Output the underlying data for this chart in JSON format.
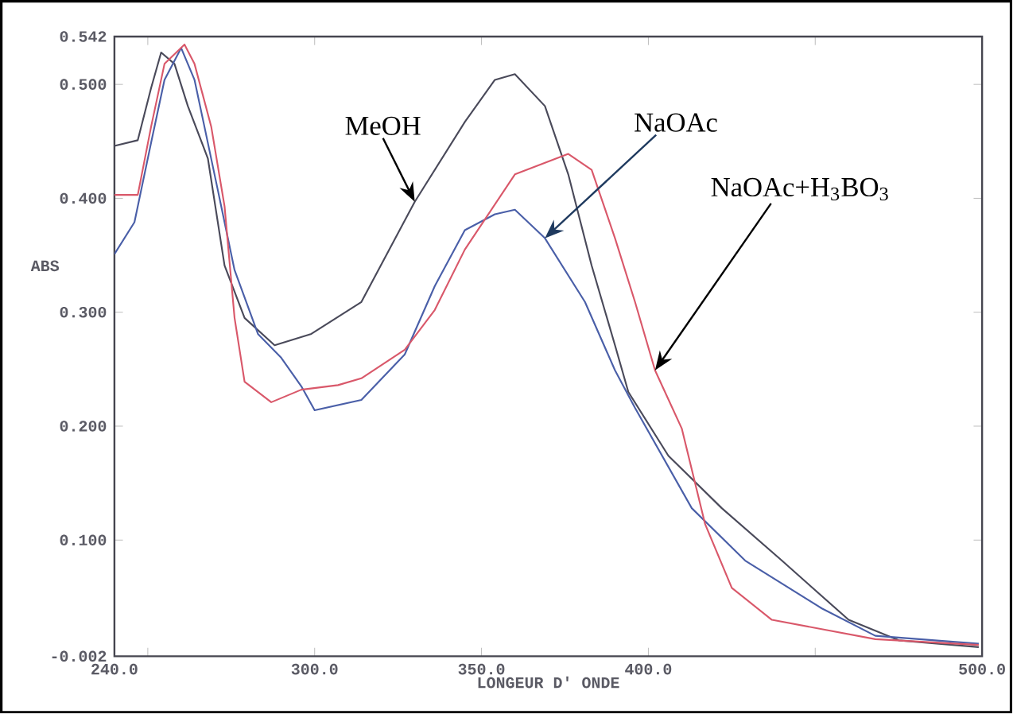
{
  "chart_data": {
    "type": "line",
    "xlabel": "LONGEUR D' ONDE",
    "ylabel": "ABS",
    "xlim": [
      240,
      500
    ],
    "ylim": [
      -0.002,
      0.542
    ],
    "xticks": [
      {
        "value": 240,
        "label": "240.0"
      },
      {
        "value": 250,
        "label": null
      },
      {
        "value": 300,
        "label": "300.0"
      },
      {
        "value": 350,
        "label": "350.0"
      },
      {
        "value": 400,
        "label": "400.0"
      },
      {
        "value": 450,
        "label": null
      },
      {
        "value": 500,
        "label": "500.0"
      }
    ],
    "yticks": [
      {
        "value": -0.002,
        "label": "-0.002"
      },
      {
        "value": 0.1,
        "label": "0.100"
      },
      {
        "value": 0.2,
        "label": "0.200"
      },
      {
        "value": 0.3,
        "label": "0.300"
      },
      {
        "value": 0.4,
        "label": "0.400"
      },
      {
        "value": 0.5,
        "label": "0.500"
      },
      {
        "value": 0.542,
        "label": "0.542"
      }
    ],
    "line_style": "solid",
    "marker": "none",
    "series": [
      {
        "color": "#4a4a5a",
        "x": [
          240,
          247,
          251,
          254,
          258,
          262,
          268,
          273,
          279,
          288,
          299,
          314,
          330,
          345,
          354,
          360,
          369,
          376,
          383,
          390,
          394,
          406,
          422,
          440,
          460,
          475,
          499
        ],
        "values": [
          0.446,
          0.451,
          0.497,
          0.528,
          0.518,
          0.481,
          0.435,
          0.341,
          0.295,
          0.271,
          0.281,
          0.309,
          0.397,
          0.467,
          0.504,
          0.509,
          0.481,
          0.421,
          0.341,
          0.271,
          0.23,
          0.174,
          0.128,
          0.082,
          0.03,
          0.012,
          0.006
        ]
      },
      {
        "color": "#4a5fa8",
        "x": [
          240,
          246,
          251,
          255,
          260,
          264,
          271,
          276,
          283,
          290,
          296,
          300,
          314,
          327,
          336,
          345,
          354,
          360,
          369,
          381,
          390,
          396,
          413,
          429,
          452,
          468,
          499
        ],
        "values": [
          0.351,
          0.379,
          0.449,
          0.504,
          0.532,
          0.504,
          0.407,
          0.337,
          0.281,
          0.26,
          0.235,
          0.214,
          0.223,
          0.263,
          0.323,
          0.372,
          0.386,
          0.39,
          0.365,
          0.309,
          0.249,
          0.216,
          0.128,
          0.082,
          0.04,
          0.016,
          0.009
        ]
      },
      {
        "color": "#d9586a",
        "x": [
          240,
          247,
          251,
          255,
          261,
          264,
          269,
          273,
          276,
          279,
          287,
          296,
          307,
          314,
          327,
          336,
          345,
          360,
          376,
          383,
          390,
          396,
          402,
          410,
          417,
          425,
          437,
          468,
          499
        ],
        "values": [
          0.403,
          0.403,
          0.463,
          0.518,
          0.535,
          0.518,
          0.463,
          0.393,
          0.295,
          0.239,
          0.221,
          0.232,
          0.236,
          0.242,
          0.267,
          0.302,
          0.355,
          0.421,
          0.439,
          0.425,
          0.365,
          0.309,
          0.249,
          0.198,
          0.114,
          0.058,
          0.03,
          0.013,
          0.008
        ]
      }
    ],
    "annotations": [
      {
        "text": "MeOH",
        "x": 330,
        "y": 0.397
      },
      {
        "text": "NaOAc",
        "x": 369,
        "y": 0.365
      },
      {
        "text": "NaOAc+H$_{3}$BO$_{3}$",
        "x": 402,
        "y": 0.249
      }
    ]
  }
}
